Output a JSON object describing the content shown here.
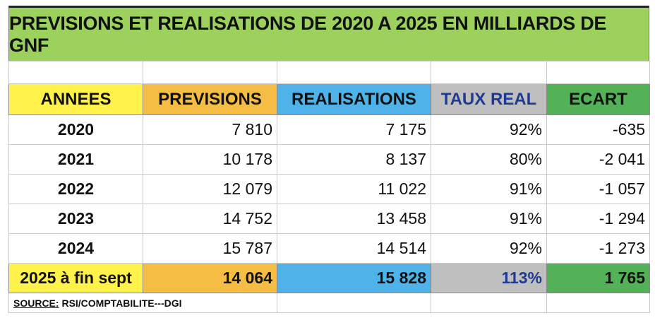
{
  "title": "PREVISIONS ET REALISATIONS DE 2020 A 2025 EN MILLIARDS DE GNF",
  "columns": [
    "ANNEES",
    "PREVISIONS",
    "REALISATIONS",
    "TAUX REAL",
    "ECART"
  ],
  "rows": [
    [
      "2020",
      "7 810",
      "7 175",
      "92%",
      "-635"
    ],
    [
      "2021",
      "10 178",
      "8 137",
      "80%",
      "-2 041"
    ],
    [
      "2022",
      "12 079",
      "11 022",
      "91%",
      "-1 057"
    ],
    [
      "2023",
      "14 752",
      "13 458",
      "91%",
      "-1 294"
    ],
    [
      "2024",
      "15 787",
      "14 514",
      "92%",
      "-1 273"
    ]
  ],
  "last_row": [
    "2025 à fin sept",
    "14 064",
    "15 828",
    "113%",
    "1 765"
  ],
  "source": {
    "key": "SOURCE:",
    "value": " RSI/COMPTABILITE---DGI"
  },
  "colors": {
    "title_bg": "#9bd15c",
    "annees": "#fff24a",
    "previsions": "#f6bd45",
    "realisations": "#4fb3ea",
    "taux": "#bfbfbf",
    "ecart": "#53b257"
  }
}
